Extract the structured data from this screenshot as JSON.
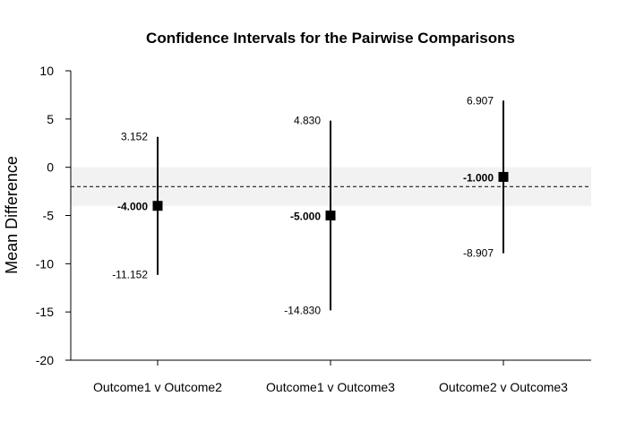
{
  "chart_data": {
    "type": "errorbar",
    "title": "Confidence Intervals for the Pairwise Comparisons",
    "xlabel": "",
    "ylabel": "Mean Difference",
    "ylim": [
      -20,
      10
    ],
    "yticks": [
      -20,
      -15,
      -10,
      -5,
      0,
      5,
      10
    ],
    "categories": [
      "Outcome1 v Outcome2",
      "Outcome1 v Outcome3",
      "Outcome2 v Outcome3"
    ],
    "estimates": [
      -4.0,
      -5.0,
      -1.0
    ],
    "lower": [
      -11.152,
      -14.83,
      -8.907
    ],
    "upper": [
      3.152,
      4.83,
      6.907
    ],
    "estimate_labels": [
      "-4.000",
      "-5.000",
      "-1.000"
    ],
    "lower_labels": [
      "-11.152",
      "-14.830",
      "-8.907"
    ],
    "upper_labels": [
      "3.152",
      "4.830",
      "6.907"
    ],
    "reference_line": -2,
    "shaded_band": [
      -4,
      0
    ],
    "grid": false,
    "colors": {
      "marks": "#000000",
      "band": "#f2f2f2"
    }
  }
}
